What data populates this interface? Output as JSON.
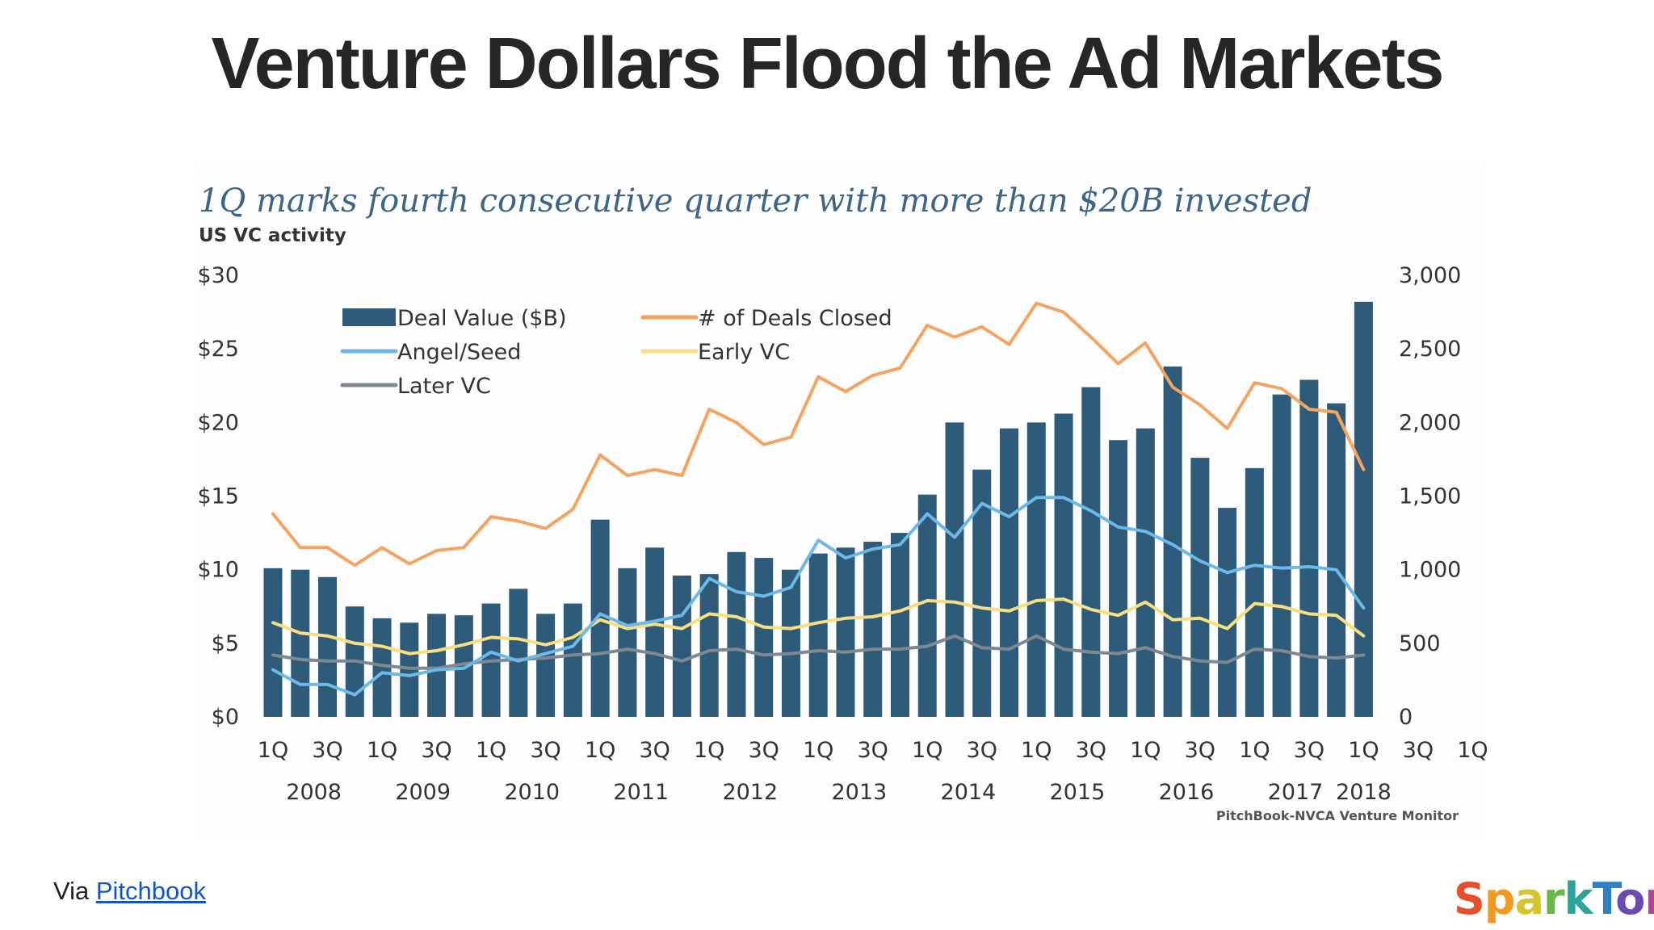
{
  "slide": {
    "title": "Venture Dollars Flood the Ad Markets",
    "via_prefix": "Via ",
    "via_link": "Pitchbook",
    "brand": "SparkToro",
    "brand_colors": [
      "#e4502c",
      "#f29a1d",
      "#d4c52a",
      "#67b847",
      "#2aa39b",
      "#2f7fc4",
      "#6a4bb0",
      "#b4429a",
      "#e44d6d"
    ]
  },
  "chart_data": {
    "type": "bar",
    "title": "1Q marks fourth consecutive quarter with more than $20B invested",
    "subtitle": "US VC activity",
    "source": "PitchBook-NVCA Venture Monitor",
    "quarter_labels": [
      "1Q",
      "",
      "3Q",
      "",
      "1Q",
      "",
      "3Q",
      "",
      "1Q",
      "",
      "3Q",
      "",
      "1Q",
      "",
      "3Q",
      "",
      "1Q",
      "",
      "3Q",
      "",
      "1Q",
      "",
      "3Q",
      "",
      "1Q",
      "",
      "3Q",
      "",
      "1Q",
      "",
      "3Q",
      "",
      "1Q",
      "",
      "3Q",
      "",
      "1Q",
      "",
      "3Q",
      "",
      "1Q",
      "",
      "3Q",
      "",
      "1Q"
    ],
    "year_labels": [
      {
        "label": "2008",
        "index": 1.5
      },
      {
        "label": "2009",
        "index": 5.5
      },
      {
        "label": "2010",
        "index": 9.5
      },
      {
        "label": "2011",
        "index": 13.5
      },
      {
        "label": "2012",
        "index": 17.5
      },
      {
        "label": "2013",
        "index": 21.5
      },
      {
        "label": "2014",
        "index": 25.5
      },
      {
        "label": "2015",
        "index": 29.5
      },
      {
        "label": "2016",
        "index": 33.5
      },
      {
        "label": "2017",
        "index": 37.5
      },
      {
        "label": "2018",
        "index": 40
      }
    ],
    "y_left": {
      "ticks": [
        "$0",
        "$5",
        "$10",
        "$15",
        "$20",
        "$25",
        "$30"
      ],
      "range": [
        0,
        30
      ]
    },
    "y_right": {
      "ticks": [
        "0",
        "500",
        "1,000",
        "1,500",
        "2,000",
        "2,500",
        "3,000"
      ],
      "range": [
        0,
        3000
      ]
    },
    "legend": [
      {
        "name": "Deal Value ($B)",
        "kind": "bar",
        "color": "#2e5b7a"
      },
      {
        "name": "# of Deals Closed",
        "kind": "line",
        "color": "#f4a460"
      },
      {
        "name": "Angel/Seed",
        "kind": "line",
        "color": "#6cb8e6"
      },
      {
        "name": "Early VC",
        "kind": "line",
        "color": "#f7de7e"
      },
      {
        "name": "Later VC",
        "kind": "line",
        "color": "#7f8891"
      }
    ],
    "series": [
      {
        "name": "Deal Value ($B)",
        "axis": "left",
        "values": [
          10.1,
          10.0,
          9.5,
          7.5,
          6.7,
          6.4,
          7.0,
          6.9,
          7.7,
          8.7,
          7.0,
          7.7,
          13.4,
          10.1,
          11.5,
          9.6,
          9.7,
          11.2,
          10.8,
          10.0,
          11.1,
          11.5,
          11.9,
          12.5,
          15.1,
          20.0,
          16.8,
          19.6,
          20.0,
          20.6,
          22.4,
          18.8,
          19.6,
          23.8,
          17.6,
          14.2,
          16.9,
          21.9,
          22.9,
          21.3,
          28.2
        ]
      },
      {
        "name": "# of Deals Closed",
        "axis": "right",
        "values": [
          1380,
          1150,
          1150,
          1030,
          1150,
          1040,
          1130,
          1150,
          1360,
          1330,
          1280,
          1410,
          1780,
          1640,
          1680,
          1640,
          2090,
          2000,
          1850,
          1900,
          2310,
          2210,
          2320,
          2370,
          2660,
          2580,
          2650,
          2530,
          2810,
          2750,
          2580,
          2400,
          2540,
          2240,
          2120,
          1960,
          2270,
          2230,
          2090,
          2070,
          1680
        ]
      },
      {
        "name": "Angel/Seed",
        "axis": "right",
        "values": [
          320,
          220,
          220,
          150,
          300,
          280,
          320,
          330,
          440,
          380,
          430,
          480,
          700,
          620,
          650,
          690,
          940,
          850,
          820,
          880,
          1200,
          1080,
          1140,
          1170,
          1380,
          1220,
          1450,
          1360,
          1490,
          1490,
          1400,
          1290,
          1260,
          1170,
          1060,
          980,
          1030,
          1010,
          1020,
          1000,
          740
        ]
      },
      {
        "name": "Early VC",
        "axis": "right",
        "values": [
          640,
          570,
          550,
          500,
          480,
          430,
          450,
          490,
          540,
          530,
          490,
          540,
          660,
          600,
          630,
          600,
          700,
          680,
          610,
          600,
          640,
          670,
          680,
          720,
          790,
          780,
          740,
          720,
          790,
          800,
          730,
          690,
          780,
          660,
          670,
          600,
          770,
          750,
          700,
          690,
          550
        ]
      },
      {
        "name": "Later VC",
        "axis": "right",
        "values": [
          420,
          390,
          380,
          380,
          350,
          330,
          330,
          360,
          380,
          390,
          400,
          420,
          430,
          460,
          430,
          380,
          450,
          460,
          420,
          430,
          450,
          440,
          460,
          460,
          480,
          550,
          470,
          460,
          550,
          460,
          440,
          430,
          470,
          410,
          380,
          370,
          460,
          450,
          410,
          400,
          420
        ]
      }
    ]
  }
}
